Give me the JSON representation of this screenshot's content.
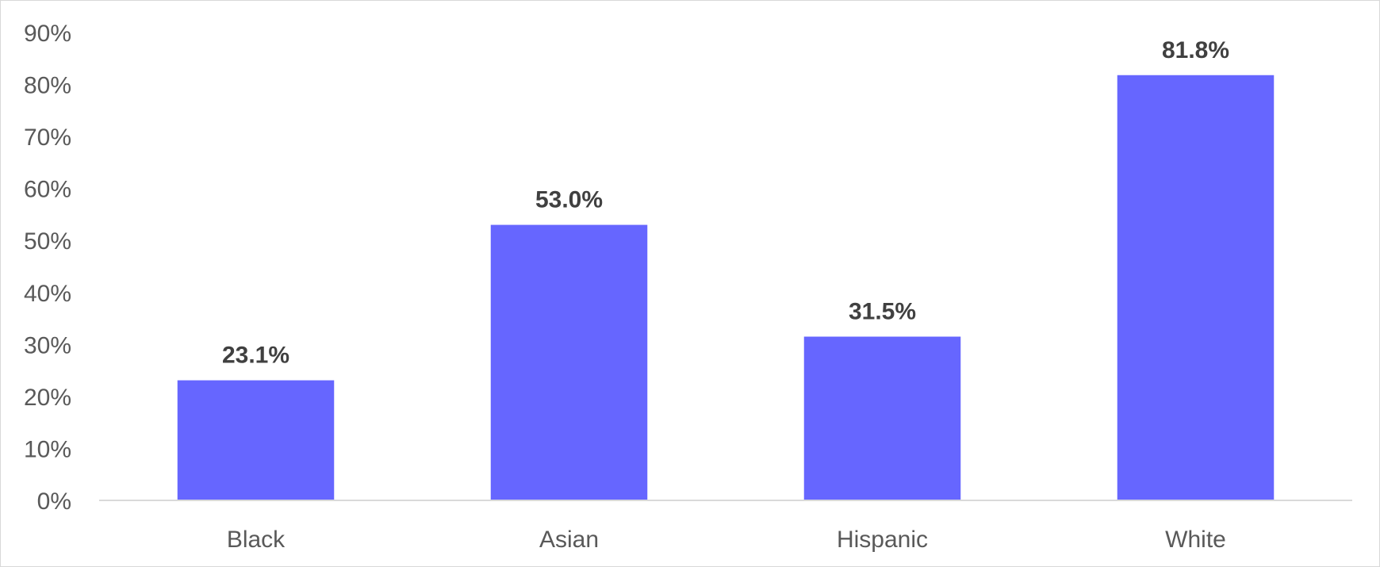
{
  "chart_data": {
    "type": "bar",
    "title": "",
    "xlabel": "",
    "ylabel": "",
    "categories": [
      "Black",
      "Asian",
      "Hispanic",
      "White"
    ],
    "values": [
      23.1,
      53.0,
      31.5,
      81.8
    ],
    "data_labels": [
      "23.1%",
      "53.0%",
      "31.5%",
      "81.8%"
    ],
    "ylim": [
      0,
      90
    ],
    "yticks": [
      0,
      10,
      20,
      30,
      40,
      50,
      60,
      70,
      80,
      90
    ],
    "ytick_labels": [
      "0%",
      "10%",
      "20%",
      "30%",
      "40%",
      "50%",
      "60%",
      "70%",
      "80%",
      "90%"
    ],
    "grid": false,
    "legend": "none",
    "colors": {
      "bar": "#6666FF",
      "axis": "#d9d9d9",
      "tick_text": "#595959",
      "data_label_text": "#404040"
    }
  }
}
